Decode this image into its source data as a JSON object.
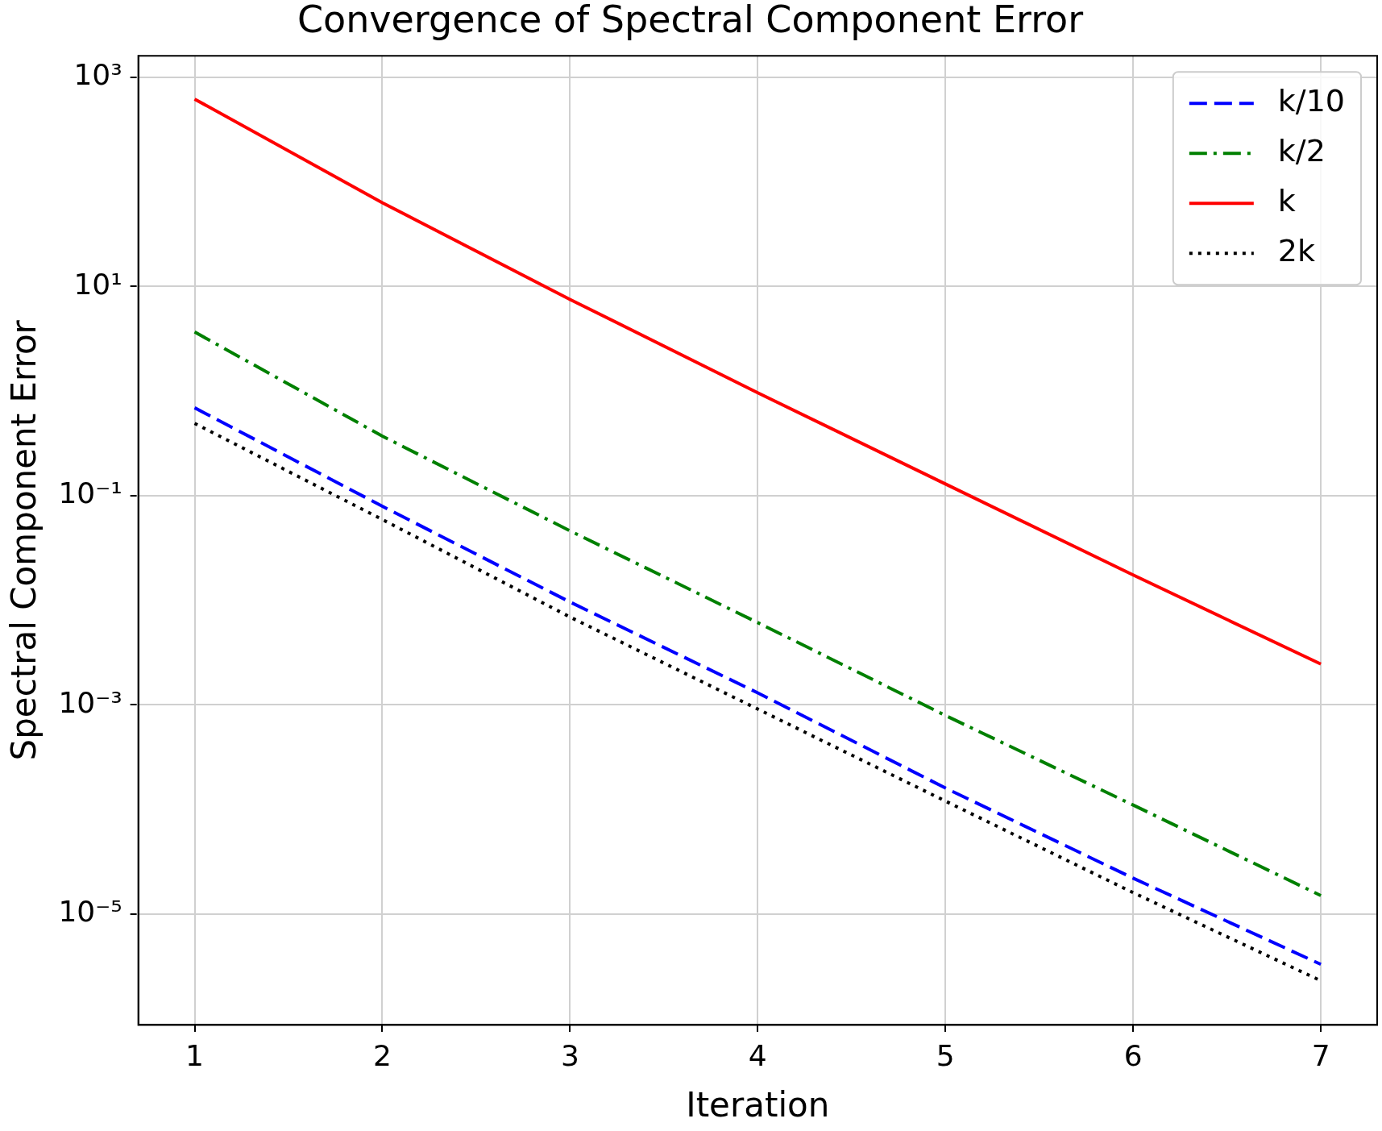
{
  "chart_data": {
    "type": "line",
    "title": "Convergence of Spectral Component Error",
    "xlabel": "Iteration",
    "ylabel": "Spectral Component Error",
    "x": [
      1,
      2,
      3,
      4,
      5,
      6,
      7
    ],
    "series": [
      {
        "name": "k/10",
        "color": "#0000ff",
        "line_style": "dashed",
        "values": [
          0.69,
          0.079,
          0.0096,
          0.0013,
          0.00016,
          2.2e-05,
          3.3e-06
        ]
      },
      {
        "name": "k/2",
        "color": "#008000",
        "line_style": "dashdot",
        "values": [
          3.66,
          0.37,
          0.046,
          0.0061,
          0.00079,
          0.00011,
          1.5e-05
        ]
      },
      {
        "name": "k",
        "color": "#ff0000",
        "line_style": "solid",
        "values": [
          617,
          63,
          7.5,
          0.96,
          0.129,
          0.0174,
          0.00245
        ]
      },
      {
        "name": "2k",
        "color": "#000000",
        "line_style": "dotted",
        "values": [
          0.49,
          0.059,
          0.0069,
          0.00091,
          0.00012,
          1.6e-05,
          2.3e-06
        ]
      }
    ],
    "log": "y",
    "xlim": [
      0.7,
      7.3
    ],
    "ylim": [
      8.7e-07,
      1600
    ],
    "xticks": [
      1,
      2,
      3,
      4,
      5,
      6,
      7
    ],
    "yticks": [
      {
        "value": 1000,
        "label": "10³"
      },
      {
        "value": 10,
        "label": "10¹"
      },
      {
        "value": 0.1,
        "label": "10⁻¹"
      },
      {
        "value": 0.001,
        "label": "10⁻³"
      },
      {
        "value": 1e-05,
        "label": "10⁻⁵"
      }
    ],
    "grid": true,
    "legend": "top right",
    "marker": "none"
  }
}
